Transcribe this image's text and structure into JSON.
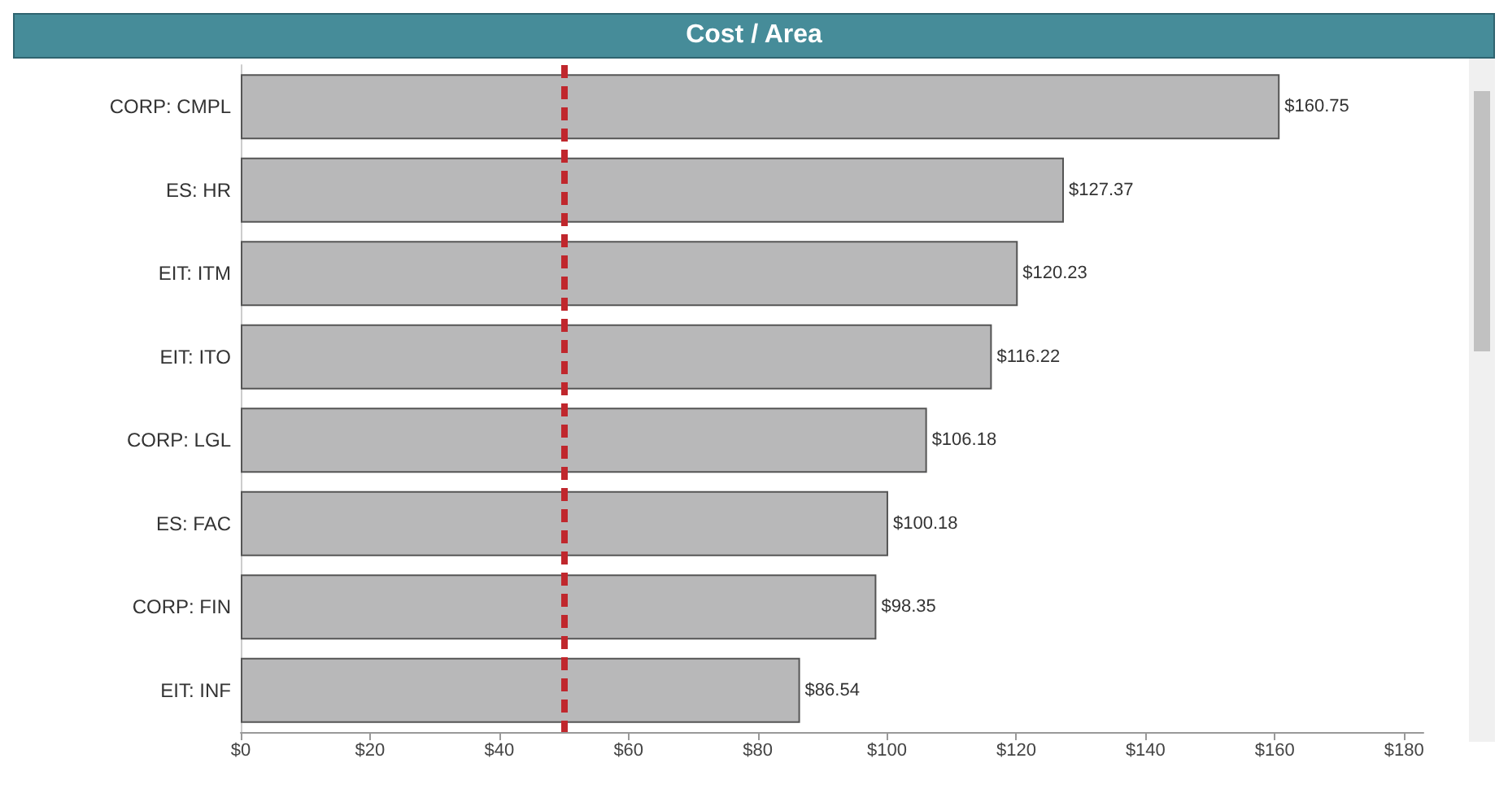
{
  "chart_data": {
    "type": "bar",
    "orientation": "horizontal",
    "title": "Cost / Area",
    "categories": [
      "CORP: CMPL",
      "ES: HR",
      "EIT: ITM",
      "EIT: ITO",
      "CORP: LGL",
      "ES: FAC",
      "CORP: FIN",
      "EIT: INF"
    ],
    "values": [
      160.75,
      127.37,
      120.23,
      116.22,
      106.18,
      100.18,
      98.35,
      86.54
    ],
    "value_labels": [
      "$160.75",
      "$127.37",
      "$120.23",
      "$116.22",
      "$106.18",
      "$100.18",
      "$98.35",
      "$86.54"
    ],
    "color": "#b8b8b9",
    "xlim": [
      0,
      183
    ],
    "xticks": [
      {
        "value": 0,
        "label": "$0"
      },
      {
        "value": 20,
        "label": "$20"
      },
      {
        "value": 40,
        "label": "$40"
      },
      {
        "value": 60,
        "label": "$60"
      },
      {
        "value": 80,
        "label": "$80"
      },
      {
        "value": 100,
        "label": "$100"
      },
      {
        "value": 120,
        "label": "$120"
      },
      {
        "value": 140,
        "label": "$140"
      },
      {
        "value": 160,
        "label": "$160"
      },
      {
        "value": 180,
        "label": "$180"
      }
    ],
    "ref_lines": [
      {
        "axis": "x",
        "value": 50,
        "color": "#c0272d",
        "line_style": "dashed"
      }
    ],
    "grid": false
  }
}
